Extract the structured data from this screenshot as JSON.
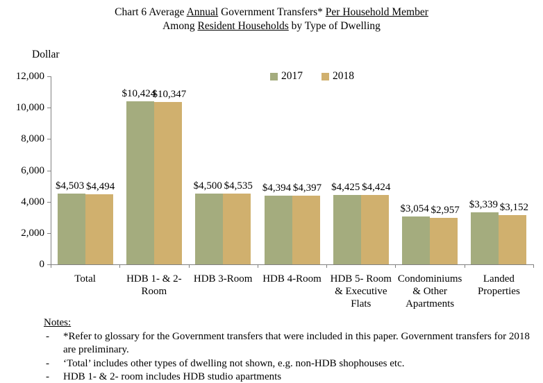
{
  "title": {
    "line1": [
      {
        "text": "Chart 6 Average ",
        "underline": false
      },
      {
        "text": "Annual",
        "underline": true
      },
      {
        "text": " Government Transfers* ",
        "underline": false
      },
      {
        "text": "Per Household Member",
        "underline": true
      }
    ],
    "line2": [
      {
        "text": "Among ",
        "underline": false
      },
      {
        "text": "Resident Households",
        "underline": true
      },
      {
        "text": " by Type of Dwelling",
        "underline": false
      }
    ]
  },
  "chart_data": {
    "type": "bar",
    "title": "Chart 6 Average Annual Government Transfers* Per Household Member Among Resident Households by Type of Dwelling",
    "y_axis_title": "Dollar",
    "categories": [
      "Total",
      "HDB 1- & 2-\nRoom",
      "HDB 3-Room",
      "HDB 4-Room",
      "HDB 5- Room\n& Executive\nFlats",
      "Condominiums\n& Other\nApartments",
      "Landed\nProperties"
    ],
    "series": [
      {
        "name": "2017",
        "color": "#A4AC7E",
        "values": [
          4503,
          10424,
          4500,
          4394,
          4425,
          3054,
          3339
        ],
        "labels": [
          "$4,503",
          "$10,424",
          "$4,500",
          "$4,394",
          "$4,425",
          "$3,054",
          "$3,339"
        ]
      },
      {
        "name": "2018",
        "color": "#D0B06E",
        "values": [
          4494,
          10347,
          4535,
          4397,
          4424,
          2957,
          3152
        ],
        "labels": [
          "$4,494",
          "$10,347",
          "$4,535",
          "$4,397",
          "$4,424",
          "$2,957",
          "$3,152"
        ]
      }
    ],
    "ylim": [
      0,
      12000
    ],
    "y_ticks": [
      "0",
      "2,000",
      "4,000",
      "6,000",
      "8,000",
      "10,000",
      "12,000"
    ],
    "grid": false,
    "legend_position": "top-center"
  },
  "notes": {
    "heading": "Notes:",
    "marker": "-",
    "items": [
      "*Refer to glossary for the Government transfers that were included in this paper. Government transfers for 2018 are preliminary.",
      "‘Total’ includes other types of dwelling not shown, e.g. non-HDB shophouses etc.",
      "HDB 1- & 2- room includes HDB studio apartments"
    ]
  },
  "colors": {
    "bar_2017": "#A4AC7E",
    "bar_2018": "#D0B06E",
    "axis": "#808080",
    "text": "#000000"
  }
}
